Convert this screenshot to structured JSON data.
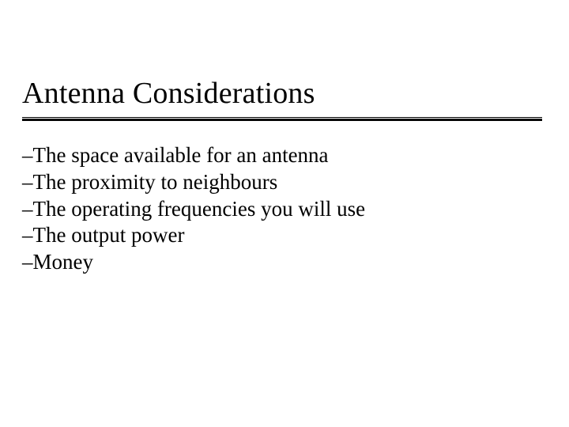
{
  "slide": {
    "title": "Antenna Considerations",
    "bullet_prefix": "–",
    "bullets": [
      "The space available for an antenna",
      "The proximity to neighbours",
      "The operating frequencies you will use",
      "The output power",
      "Money"
    ],
    "colors": {
      "background": "#ffffff",
      "text": "#000000",
      "rule": "#000000"
    },
    "typography": {
      "family": "Times New Roman",
      "title_size_pt": 28,
      "body_size_pt": 20
    }
  }
}
